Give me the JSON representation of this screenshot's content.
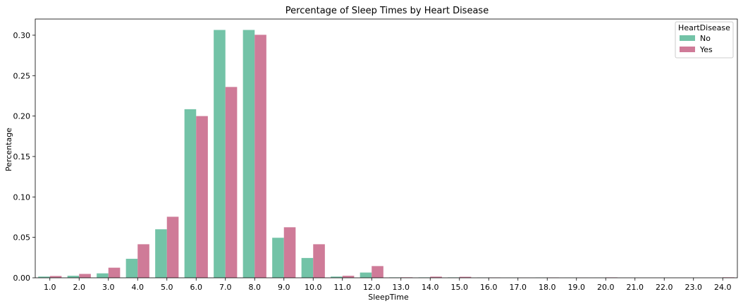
{
  "chart_data": {
    "type": "bar",
    "title": "Percentage of Sleep Times by Heart Disease",
    "xlabel": "SleepTime",
    "ylabel": "Percentage",
    "ylim": [
      0,
      0.32
    ],
    "yticks": [
      "0.00",
      "0.05",
      "0.10",
      "0.15",
      "0.20",
      "0.25",
      "0.30"
    ],
    "grid": false,
    "legend": {
      "title": "HeartDisease",
      "placement": "top-right"
    },
    "categories": [
      "1.0",
      "2.0",
      "3.0",
      "4.0",
      "5.0",
      "6.0",
      "7.0",
      "8.0",
      "9.0",
      "10.0",
      "11.0",
      "12.0",
      "13.0",
      "14.0",
      "15.0",
      "16.0",
      "17.0",
      "18.0",
      "19.0",
      "20.0",
      "21.0",
      "22.0",
      "23.0",
      "24.0"
    ],
    "series": [
      {
        "name": "No",
        "color": "#73c3a7",
        "values": [
          0.0015,
          0.0025,
          0.0055,
          0.0235,
          0.06,
          0.2085,
          0.3065,
          0.3065,
          0.0495,
          0.0245,
          0.0015,
          0.0065,
          0.0005,
          0.0005,
          0.0005,
          0.0003,
          0.0001,
          0.0003,
          0.0001,
          0.0001,
          0.0,
          0.0,
          0.0,
          0.0
        ]
      },
      {
        "name": "Yes",
        "color": "#cf7b98",
        "values": [
          0.0022,
          0.0048,
          0.0125,
          0.0415,
          0.0755,
          0.2,
          0.236,
          0.3005,
          0.0625,
          0.0415,
          0.0025,
          0.0145,
          0.0006,
          0.0014,
          0.0012,
          0.0004,
          0.0001,
          0.0004,
          0.0001,
          0.0005,
          0.0,
          0.0,
          0.0,
          0.0006
        ]
      }
    ]
  }
}
